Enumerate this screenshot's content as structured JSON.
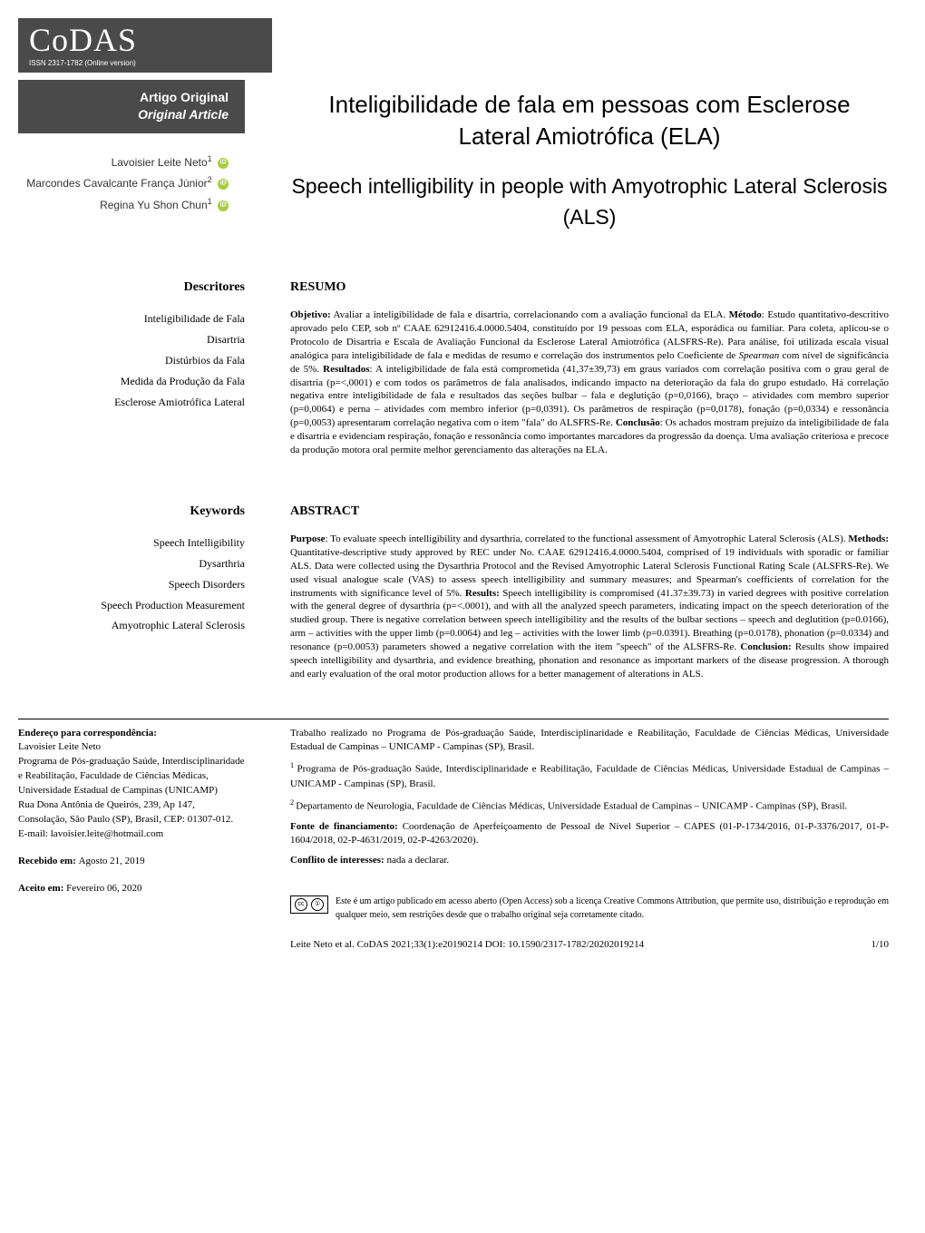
{
  "journal": {
    "logo": "CoDAS",
    "issn": "ISSN 2317-1782 (Online version)"
  },
  "article_type": {
    "pt": "Artigo Original",
    "en": "Original Article"
  },
  "authors": [
    {
      "name": "Lavoisier Leite Neto",
      "affil": "1"
    },
    {
      "name": "Marcondes Cavalcante França Júnior",
      "affil": "2"
    },
    {
      "name": "Regina Yu Shon Chun",
      "affil": "1"
    }
  ],
  "title": {
    "pt": "Inteligibilidade de fala em pessoas com Esclerose Lateral Amiotrófica (ELA)",
    "en": "Speech intelligibility in people with Amyotrophic Lateral Sclerosis (ALS)"
  },
  "descriptors_pt": {
    "heading": "Descritores",
    "items": [
      "Inteligibilidade de Fala",
      "Disartria",
      "Distúrbios da Fala",
      "Medida da Produção da Fala",
      "Esclerose Amiotrófica Lateral"
    ]
  },
  "resumo": {
    "heading": "RESUMO",
    "objetivo_label": "Objetivo:",
    "objetivo": " Avaliar a inteligibilidade de fala e disartria, correlacionando com a avaliação funcional da ELA.",
    "metodo_label": "Método",
    "metodo": ": Estudo quantitativo-descritivo aprovado pelo CEP, sob nº CAAE 62912416.4.0000.5404, constituído por 19 pessoas com ELA, esporádica ou familiar. Para coleta, aplicou-se o Protocolo de Disartria e Escala de Avaliação Funcional da Esclerose Lateral Amiotrófica (ALSFRS-Re). Para análise, foi utilizada escala visual analógica para inteligibilidade de fala e medidas de resumo e correlação dos instrumentos pelo Coeficiente de ",
    "spearman": "Spearman",
    "metodo2": " com nível de significância de 5%. ",
    "resultados_label": "Resultados",
    "resultados": ": A inteligibilidade de fala está comprometida (41,37±39,73) em graus variados com correlação positiva com o grau geral de disartria (p=<,0001) e com todos os parâmetros de fala analisados, indicando impacto na deterioração da fala do grupo estudado. Há correlação negativa entre inteligibilidade de fala e resultados das seções bulbar – fala e deglutição (p=0,0166), braço – atividades com membro superior (p=0,0064) e perna – atividades com membro inferior (p=0,0391). Os parâmetros de respiração (p=0,0178), fonação (p=0,0334) e ressonância (p=0,0053) apresentaram correlação negativa com o item \"fala\" do ALSFRS-Re. ",
    "conclusao_label": "Conclusão",
    "conclusao": ": Os achados mostram prejuízo da inteligibilidade de fala e disartria e evidenciam respiração, fonação e ressonância como importantes marcadores da progressão da doença. Uma avaliação criteriosa e precoce da produção motora oral permite melhor gerenciamento das alterações na ELA."
  },
  "keywords_en": {
    "heading": "Keywords",
    "items": [
      "Speech Intelligibility",
      "Dysarthria",
      "Speech Disorders",
      "Speech Production Measurement",
      "Amyotrophic Lateral Sclerosis"
    ]
  },
  "abstract": {
    "heading": "ABSTRACT",
    "purpose_label": "Purpose",
    "purpose": ": To evaluate speech intelligibility and dysarthria, correlated to the functional assessment of Amyotrophic Lateral Sclerosis (ALS). ",
    "methods_label": "Methods:",
    "methods": " Quantitative-descriptive study approved by REC under No. CAAE 62912416.4.0000.5404, comprised of 19 individuals with sporadic or familiar ALS. Data were collected using the Dysarthria Protocol and the Revised Amyotrophic Lateral Sclerosis Functional Rating Scale (ALSFRS-Re). We used visual analogue scale (VAS) to assess speech intelligibility and summary measures; and Spearman's coefficients of correlation for the instruments with significance level of 5%. ",
    "results_label": "Results:",
    "results": " Speech intelligibility is compromised (41.37±39.73) in varied degrees with positive correlation with the general degree of dysarthria (p=<.0001), and with all the analyzed speech parameters, indicating impact on the speech deterioration of the studied group. There is negative correlation between speech intelligibility and the results of the bulbar sections – speech and deglutition (p=0.0166), arm – activities with the upper limb (p=0.0064) and leg – activities with the lower limb (p=0.0391). Breathing (p=0.0178), phonation (p=0.0334) and resonance (p=0.0053) parameters showed a negative correlation with the item \"speech\" of the ALSFRS-Re. ",
    "conclusion_label": "Conclusion:",
    "conclusion": " Results show impaired speech intelligibility and dysarthria, and evidence breathing, phonation and resonance as important markers of the disease progression. A thorough and early evaluation of the oral motor production allows for a better management of alterations in ALS."
  },
  "correspondence": {
    "heading": "Endereço para correspondência:",
    "name": "Lavoisier Leite Neto",
    "program": "Programa de Pós-graduação Saúde, Interdisciplinaridade e Reabilitação, Faculdade de Ciências Médicas, Universidade Estadual de Campinas (UNICAMP)",
    "address": "Rua Dona Antônia de Queirós, 239, Ap 147, Consolação, São Paulo (SP), Brasil, CEP: 01307-012.",
    "email_label": "E-mail: ",
    "email": "lavoisier.leite@hotmail.com"
  },
  "dates": {
    "received_label": "Recebido em: ",
    "received": "Agosto 21, 2019",
    "accepted_label": "Aceito em: ",
    "accepted": "Fevereiro 06, 2020"
  },
  "affiliations": {
    "work": "Trabalho realizado no Programa de Pós-graduação Saúde, Interdisciplinaridade e Reabilitação, Faculdade de Ciências Médicas, Universidade Estadual de Campinas – UNICAMP - Campinas (SP), Brasil.",
    "a1": "Programa de Pós-graduação Saúde, Interdisciplinaridade e Reabilitação, Faculdade de Ciências Médicas, Universidade Estadual de Campinas – UNICAMP - Campinas (SP), Brasil.",
    "a2": "Departamento de Neurologia, Faculdade de Ciências Médicas, Universidade Estadual de Campinas – UNICAMP - Campinas (SP), Brasil.",
    "funding_label": "Fonte de financiamento: ",
    "funding": "Coordenação de Aperfeiçoamento de Pessoal de Nível Superior – CAPES (01-P-1734/2016, 01-P-3376/2017, 01-P-1604/2018, 02-P-4631/2019, 02-P-4263/2020).",
    "conflict_label": "Conflito de interesses: ",
    "conflict": "nada a declarar."
  },
  "cc": {
    "text": "Este é um artigo publicado em acesso aberto (Open Access) sob a licença Creative Commons Attribution, que permite uso, distribuição e reprodução em qualquer meio, sem restrições desde que o trabalho original seja corretamente citado."
  },
  "citation": {
    "text": "Leite Neto et al. CoDAS 2021;33(1):e20190214 DOI: 10.1590/2317-1782/20202019214",
    "page": "1/10"
  }
}
